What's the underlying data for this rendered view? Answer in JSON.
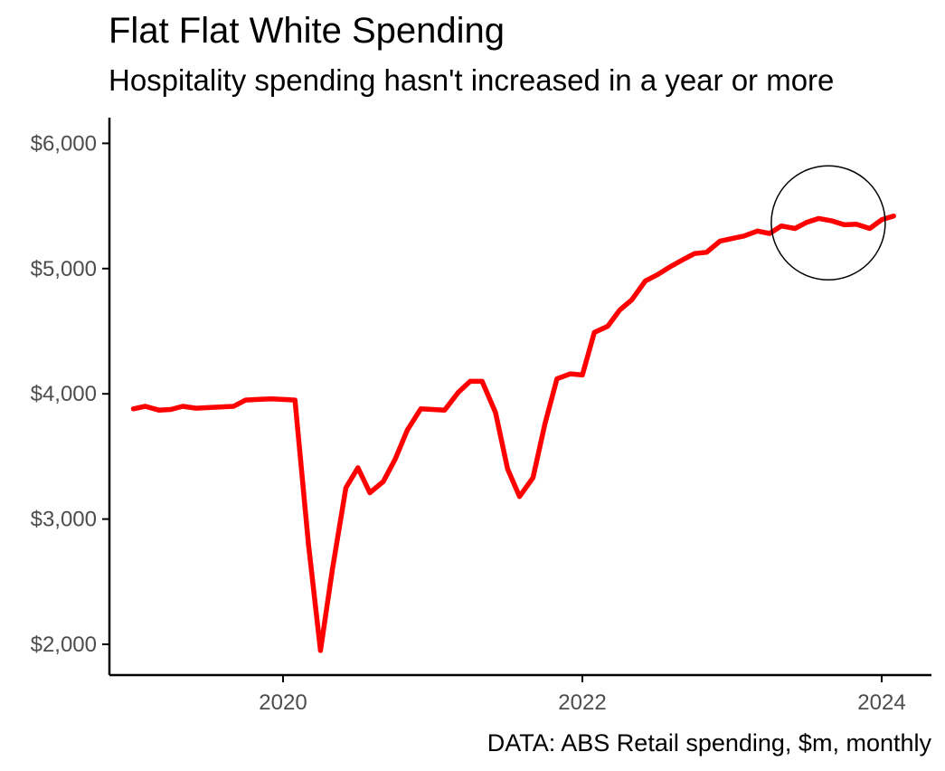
{
  "chart_data": {
    "type": "line",
    "title": "Flat Flat White Spending",
    "subtitle": "Hospitality spending hasn't increased in a year or more",
    "caption": "DATA: ABS Retail spending, $m, monthly",
    "xlabel": "",
    "ylabel": "",
    "xlim": [
      2019.0,
      2024.35
    ],
    "ylim": [
      1760,
      6200
    ],
    "x_ticks": [
      2020,
      2022,
      2024
    ],
    "x_tick_labels": [
      "2020",
      "2022",
      "2024"
    ],
    "y_ticks": [
      2000,
      3000,
      4000,
      5000,
      6000
    ],
    "y_tick_labels": [
      "$2,000",
      "$3,000",
      "$4,000",
      "$5,000",
      "$6,000"
    ],
    "grid": false,
    "series_color": "#ff0000",
    "annotation": "circle around the final months of the series (2023–2024)",
    "series": [
      {
        "name": "Hospitality spending",
        "x": [
          2019.0,
          2019.08,
          2019.17,
          2019.25,
          2019.33,
          2019.42,
          2019.5,
          2019.58,
          2019.67,
          2019.75,
          2019.83,
          2019.92,
          2020.0,
          2020.08,
          2020.17,
          2020.25,
          2020.33,
          2020.42,
          2020.5,
          2020.58,
          2020.67,
          2020.75,
          2020.83,
          2020.92,
          2021.0,
          2021.08,
          2021.17,
          2021.25,
          2021.33,
          2021.42,
          2021.5,
          2021.58,
          2021.67,
          2021.75,
          2021.83,
          2021.92,
          2022.0,
          2022.08,
          2022.17,
          2022.25,
          2022.33,
          2022.42,
          2022.5,
          2022.58,
          2022.67,
          2022.75,
          2022.83,
          2022.92,
          2023.0,
          2023.08,
          2023.17,
          2023.25,
          2023.33,
          2023.42,
          2023.5,
          2023.58,
          2023.67,
          2023.75,
          2023.83,
          2023.92,
          2024.0,
          2024.08
        ],
        "values": [
          3880,
          3900,
          3870,
          3875,
          3900,
          3885,
          3890,
          3895,
          3900,
          3950,
          3955,
          3960,
          3955,
          3950,
          2800,
          1950,
          2600,
          3250,
          3410,
          3210,
          3300,
          3480,
          3710,
          3880,
          3875,
          3870,
          4010,
          4100,
          4100,
          3850,
          3400,
          3180,
          3330,
          3760,
          4120,
          4160,
          4150,
          4490,
          4540,
          4670,
          4750,
          4900,
          4950,
          5010,
          5070,
          5120,
          5130,
          5220,
          5240,
          5260,
          5300,
          5280,
          5340,
          5320,
          5370,
          5400,
          5380,
          5350,
          5355,
          5320,
          5390,
          5420
        ]
      }
    ]
  }
}
